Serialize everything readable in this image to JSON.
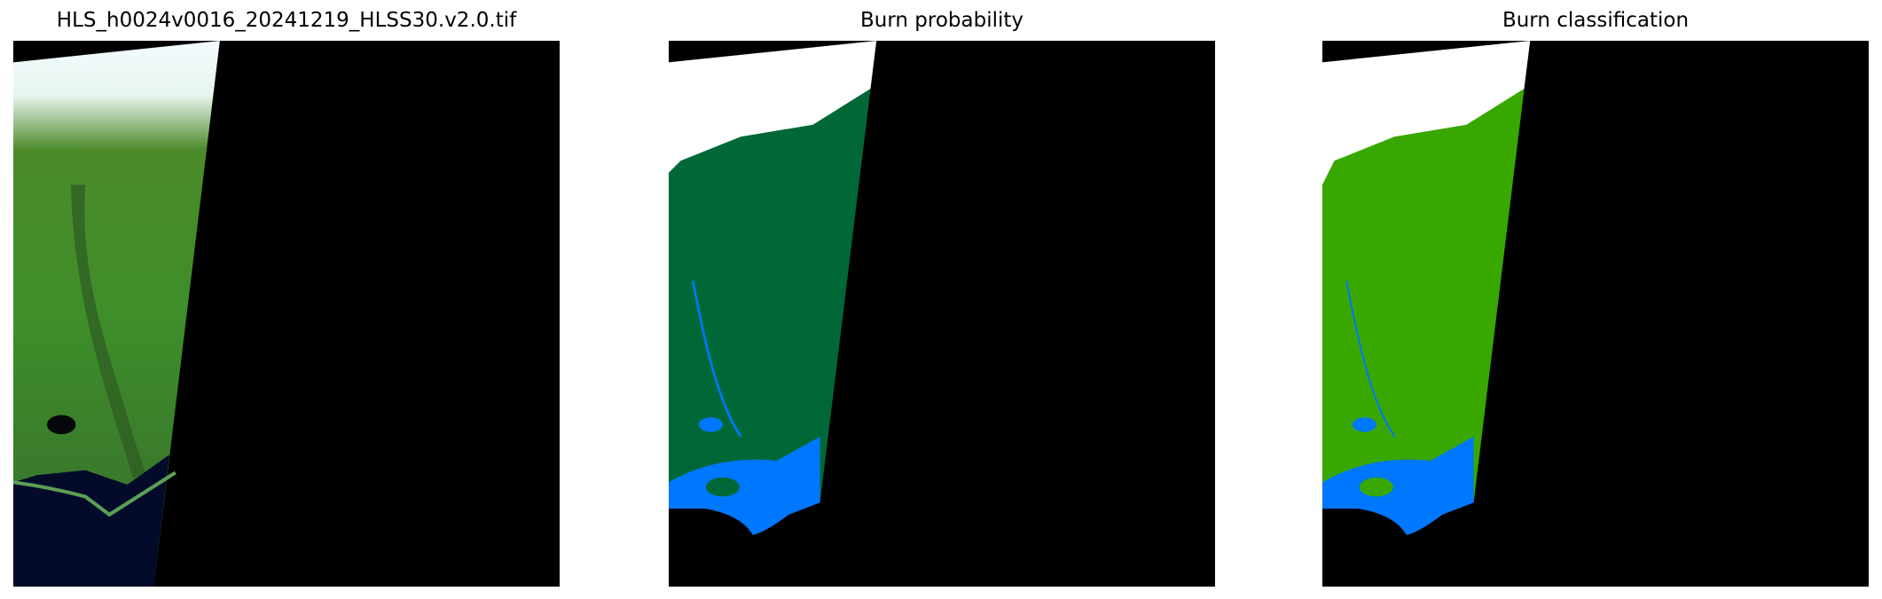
{
  "figure": {
    "panels": [
      {
        "title": "HLS_h0024v0016_20241219_HLSS30.v2.0.tif",
        "kind": "true-color satellite image"
      },
      {
        "title": "Burn probability",
        "kind": "classified raster"
      },
      {
        "title": "Burn classification",
        "kind": "classified raster"
      }
    ],
    "axes_visible": false
  },
  "colors": {
    "nodata": "#000000",
    "cloud": "#ffffff",
    "vegetation_rgb": "#3f8f2a",
    "sea_rgb": "#030a2a",
    "probability_land": "#006837",
    "classification_land": "#38a800",
    "water": "#0077ff"
  }
}
